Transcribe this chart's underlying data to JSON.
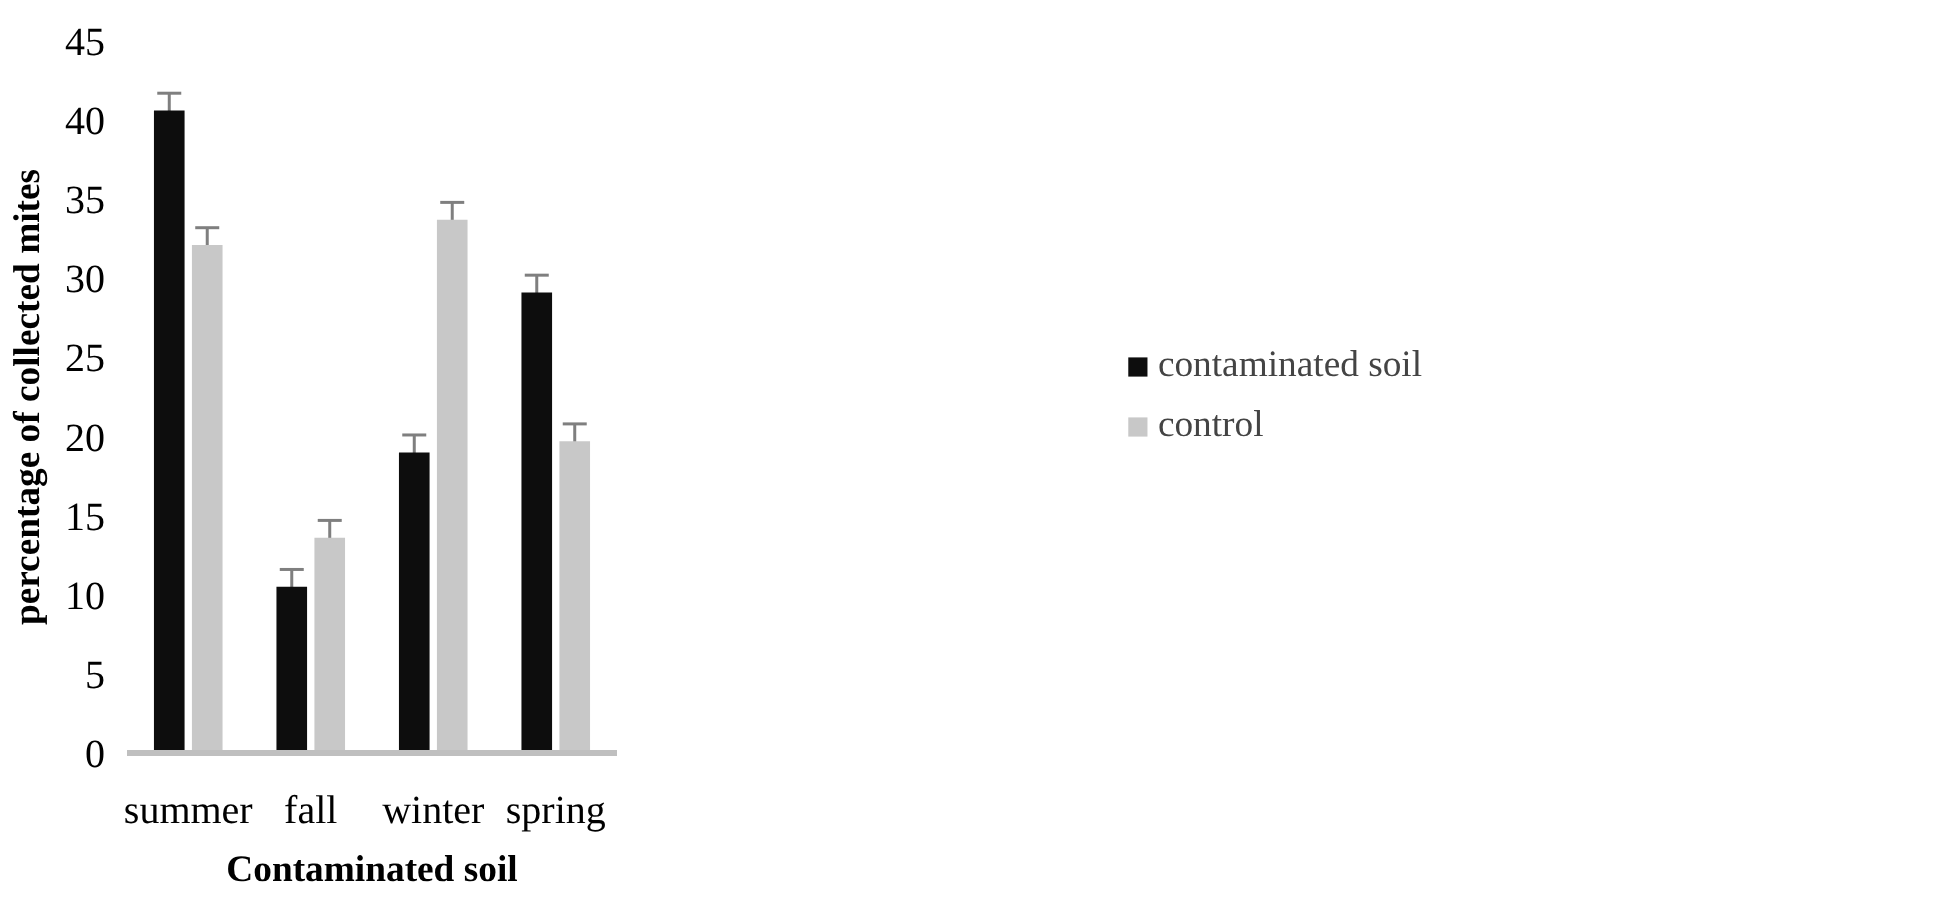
{
  "chart_data": {
    "type": "bar",
    "xlabel": "Contaminated soil",
    "ylabel": "percentage of collected mites",
    "categories": [
      "summer",
      "fall",
      "winter",
      "spring"
    ],
    "series": [
      {
        "name": "contaminated soil",
        "color": "#0d0d0d",
        "values": [
          40.6,
          10.5,
          19.0,
          29.1
        ],
        "errors": [
          1.1,
          1.1,
          1.1,
          1.1
        ]
      },
      {
        "name": "control",
        "color": "#c8c8c8",
        "values": [
          32.1,
          13.6,
          33.7,
          19.7
        ],
        "errors": [
          1.1,
          1.1,
          1.1,
          1.1
        ]
      }
    ],
    "ylim": [
      0,
      45
    ],
    "yticks": [
      0,
      5,
      10,
      15,
      20,
      25,
      30,
      35,
      40,
      45
    ],
    "grid": false,
    "legend": "right"
  }
}
